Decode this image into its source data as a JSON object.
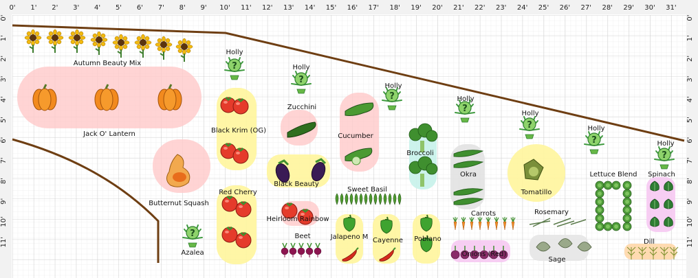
{
  "ruler": {
    "x_labels": [
      "0'",
      "1'",
      "2'",
      "3'",
      "4'",
      "5'",
      "6'",
      "7'",
      "8'",
      "9'",
      "10'",
      "11'",
      "12'",
      "13'",
      "14'",
      "15'",
      "16'",
      "17'",
      "18'",
      "19'",
      "20'",
      "21'",
      "22'",
      "23'",
      "24'",
      "25'",
      "26'",
      "27'",
      "28'",
      "29'",
      "30'",
      "31'"
    ],
    "y_labels": [
      "0'",
      "1'",
      "2'",
      "3'",
      "4'",
      "5'",
      "6'",
      "7'",
      "8'",
      "9'",
      "10'",
      "11'"
    ]
  },
  "plants": [
    {
      "key": "sunflowers",
      "label": "Autumn Beauty Mix",
      "icon": "sunflower-icon"
    },
    {
      "key": "pumpkins",
      "label": "Jack O' Lantern",
      "icon": "pumpkin-icon"
    },
    {
      "key": "butternut",
      "label": "Butternut Squash",
      "icon": "butternut-squash-icon"
    },
    {
      "key": "holly1",
      "label": "Holly",
      "icon": "unknown-plant-icon"
    },
    {
      "key": "holly2",
      "label": "Holly",
      "icon": "unknown-plant-icon"
    },
    {
      "key": "holly3",
      "label": "Holly",
      "icon": "unknown-plant-icon"
    },
    {
      "key": "holly4",
      "label": "Holly",
      "icon": "unknown-plant-icon"
    },
    {
      "key": "holly5",
      "label": "Holly",
      "icon": "unknown-plant-icon"
    },
    {
      "key": "holly6",
      "label": "Holly",
      "icon": "unknown-plant-icon"
    },
    {
      "key": "holly7",
      "label": "Holly",
      "icon": "unknown-plant-icon"
    },
    {
      "key": "azalea",
      "label": "Azalea",
      "icon": "unknown-plant-icon"
    },
    {
      "key": "blackkrim",
      "label": "Black Krim (OG)",
      "icon": "tomato-icon"
    },
    {
      "key": "redcherry",
      "label": "Red Cherry",
      "icon": "tomato-icon"
    },
    {
      "key": "zucchini",
      "label": "Zucchini",
      "icon": "zucchini-icon"
    },
    {
      "key": "cucumber",
      "label": "Cucumber",
      "icon": "cucumber-icon"
    },
    {
      "key": "broccoli",
      "label": "Broccoli",
      "icon": "broccoli-icon"
    },
    {
      "key": "okra",
      "label": "Okra",
      "icon": "okra-icon"
    },
    {
      "key": "tomatillo",
      "label": "Tomatillo",
      "icon": "tomatillo-icon"
    },
    {
      "key": "lettuce",
      "label": "Lettuce Blend",
      "icon": "lettuce-icon"
    },
    {
      "key": "spinach",
      "label": "Spinach",
      "icon": "spinach-icon"
    },
    {
      "key": "eggplant",
      "label": "Black Beauty",
      "icon": "eggplant-icon"
    },
    {
      "key": "basil",
      "label": "Sweet Basil",
      "icon": "basil-icon"
    },
    {
      "key": "heirloom",
      "label": "Heirloom Rainbow",
      "icon": "tomato-icon"
    },
    {
      "key": "beet",
      "label": "Beet",
      "icon": "beet-icon"
    },
    {
      "key": "jalapeno",
      "label": "Jalapeno M",
      "icon": "pepper-icon"
    },
    {
      "key": "cayenne",
      "label": "Cayenne",
      "icon": "pepper-icon"
    },
    {
      "key": "poblano",
      "label": "Poblano",
      "icon": "pepper-icon"
    },
    {
      "key": "carrots",
      "label": "Carrots",
      "icon": "carrot-icon"
    },
    {
      "key": "onions",
      "label": "Onions (Red)",
      "icon": "onion-icon"
    },
    {
      "key": "rosemary",
      "label": "Rosemary",
      "icon": "rosemary-icon"
    },
    {
      "key": "sage",
      "label": "Sage",
      "icon": "sage-icon"
    },
    {
      "key": "dill",
      "label": "Dill",
      "icon": "dill-icon"
    }
  ]
}
